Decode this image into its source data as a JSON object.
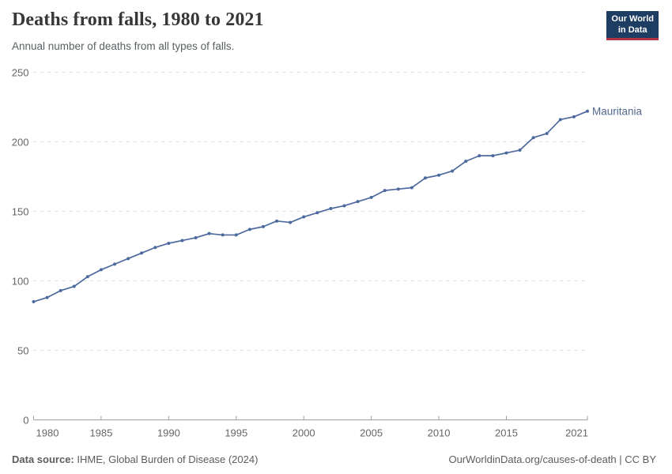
{
  "header": {
    "title": "Deaths from falls, 1980 to 2021",
    "subtitle": "Annual number of deaths from all types of falls.",
    "logo": {
      "line1": "Our World",
      "line2": "in Data"
    }
  },
  "chart_data": {
    "type": "line",
    "title": "Deaths from falls, 1980 to 2021",
    "subtitle": "Annual number of deaths from all types of falls.",
    "x": [
      1980,
      1981,
      1982,
      1983,
      1984,
      1985,
      1986,
      1987,
      1988,
      1989,
      1990,
      1991,
      1992,
      1993,
      1994,
      1995,
      1996,
      1997,
      1998,
      1999,
      2000,
      2001,
      2002,
      2003,
      2004,
      2005,
      2006,
      2007,
      2008,
      2009,
      2010,
      2011,
      2012,
      2013,
      2014,
      2015,
      2016,
      2017,
      2018,
      2019,
      2020,
      2021
    ],
    "series": [
      {
        "name": "Mauritania",
        "values": [
          85,
          88,
          93,
          96,
          103,
          108,
          112,
          116,
          120,
          124,
          127,
          129,
          131,
          134,
          133,
          133,
          137,
          139,
          143,
          142,
          146,
          149,
          152,
          154,
          157,
          160,
          165,
          166,
          167,
          174,
          176,
          179,
          186,
          190,
          190,
          192,
          194,
          203,
          206,
          216,
          218,
          222
        ]
      }
    ],
    "entity_label": "Mauritania",
    "xlabel": "",
    "ylabel": "",
    "ylim": [
      0,
      250
    ],
    "yticks": [
      0,
      50,
      100,
      150,
      200,
      250
    ],
    "xticks": [
      1980,
      1985,
      1990,
      1995,
      2000,
      2005,
      2010,
      2015,
      2021
    ],
    "grid": "horizontal-dashed",
    "legend": "entity-label-at-line-end",
    "marker": "circle"
  },
  "footer": {
    "source_label": "Data source:",
    "source_text": "IHME, Global Burden of Disease (2024)",
    "rights": "OurWorldinData.org/causes-of-death | CC BY"
  },
  "colors": {
    "background": "#ffffff",
    "line": "#4c6a9d",
    "entity_label": "#52688f",
    "title": "#373737",
    "subtitle": "#5b6163",
    "axis_label": "#666666",
    "gridline": "#dedede",
    "axis_line": "#9e9e9e",
    "logo_bg": "#1d3d63",
    "logo_red": "#b03340",
    "footer": "#5c5c5c"
  }
}
